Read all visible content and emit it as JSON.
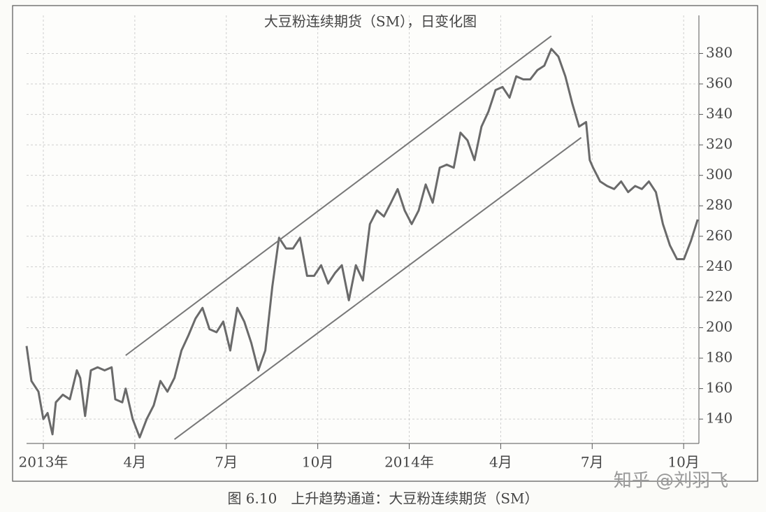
{
  "chart_data": {
    "type": "line",
    "title": "大豆粉连续期货（SM），日变化图",
    "caption": "图 6.10　上升趋势通道：大豆粉连续期货（SM）",
    "watermark": "知乎 @刘羽飞",
    "x": [
      -0.55,
      -0.39,
      -0.16,
      0,
      0.14,
      0.3,
      0.41,
      0.64,
      0.87,
      1.1,
      1.21,
      1.37,
      1.56,
      1.78,
      2.01,
      2.24,
      2.36,
      2.59,
      2.7,
      2.93,
      3.16,
      3.39,
      3.62,
      3.84,
      4.07,
      4.3,
      4.53,
      4.76,
      4.99,
      5.22,
      5.45,
      5.68,
      5.9,
      6.13,
      6.36,
      6.59,
      6.82,
      7.05,
      7.28,
      7.51,
      7.73,
      7.96,
      8.19,
      8.42,
      8.65,
      8.88,
      9.11,
      9.34,
      9.57,
      9.79,
      10.02,
      10.25,
      10.48,
      10.71,
      10.94,
      11.17,
      11.4,
      11.62,
      11.85,
      12.08,
      12.31,
      12.54,
      12.77,
      13,
      13.23,
      13.46,
      13.68,
      13.91,
      14.14,
      14.37,
      14.6,
      14.83,
      15.06,
      15.29,
      15.51,
      15.74,
      15.97,
      16.2,
      16.43,
      16.66,
      16.89,
      17.12,
      17.35,
      17.57,
      17.8,
      17.92,
      18.03,
      18.26,
      18.49,
      18.72,
      18.95,
      19.18,
      19.41,
      19.63,
      19.86,
      20.09,
      20.32,
      20.55,
      20.78,
      21.01,
      21.24,
      21.46
    ],
    "series": [
      {
        "color": "#6a6a6a",
        "values": [
          188,
          165,
          158,
          140,
          144,
          130,
          151,
          156,
          153,
          172,
          167,
          142,
          172,
          174,
          172,
          174,
          153,
          151,
          160,
          140,
          128,
          140,
          149,
          165,
          158,
          167,
          185,
          195,
          206,
          213,
          199,
          197,
          204,
          185,
          213,
          204,
          190,
          172,
          185,
          227,
          259,
          252,
          252,
          259,
          234,
          234,
          241,
          229,
          236,
          241,
          218,
          241,
          231,
          268,
          277,
          273,
          282,
          291,
          277,
          268,
          277,
          294,
          282,
          305,
          307,
          305,
          328,
          323,
          310,
          332,
          342,
          356,
          358,
          351,
          365,
          363,
          363,
          369,
          372,
          383,
          378,
          365,
          347,
          332,
          335,
          310,
          305,
          296,
          293,
          291,
          296,
          289,
          293,
          291,
          296,
          289,
          268,
          254,
          245,
          245,
          257,
          271
        ]
      }
    ],
    "trend_lines": [
      {
        "color": "#777777",
        "x": [
          2.7,
          16.66
        ],
        "values": [
          181.8,
          391.5
        ]
      },
      {
        "color": "#777777",
        "x": [
          4.3,
          17.64
        ],
        "values": [
          126.7,
          324.8
        ]
      }
    ],
    "xlim": [
      -0.55,
      21.5
    ],
    "xticks": [
      {
        "value": 0,
        "label": "2013年"
      },
      {
        "value": 3,
        "label": "4月"
      },
      {
        "value": 6,
        "label": "7月"
      },
      {
        "value": 9,
        "label": "10月"
      },
      {
        "value": 12,
        "label": "2014年"
      },
      {
        "value": 15,
        "label": "4月"
      },
      {
        "value": 18,
        "label": "7月"
      },
      {
        "value": 21,
        "label": "10月"
      }
    ],
    "ylim": [
      124,
      405
    ],
    "yticks": [
      140,
      160,
      180,
      200,
      220,
      240,
      260,
      280,
      300,
      320,
      340,
      360,
      380
    ],
    "grid": true
  }
}
